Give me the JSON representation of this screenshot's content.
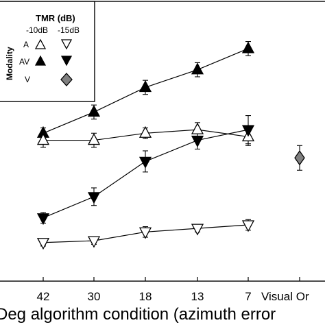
{
  "chart_data": {
    "type": "line",
    "xlabel": "Deg algorithm condition (azimuth error",
    "categories": [
      "42",
      "30",
      "18",
      "13",
      "7",
      "Visual Or"
    ],
    "legend": {
      "title": "TMR (dB)",
      "col_headers": [
        "-10dB",
        "-15dB"
      ],
      "row_title": "Modality",
      "rows": [
        "A",
        "AV",
        "V"
      ],
      "placement": "top-left"
    },
    "series": [
      {
        "name": "AV -10dB",
        "marker": "triangle-up",
        "fill": "#000000",
        "x": [
          "42",
          "30",
          "18",
          "13",
          "7"
        ],
        "y": [
          0.6,
          0.66,
          0.73,
          0.78,
          0.84
        ],
        "err": [
          0.015,
          0.02,
          0.02,
          0.02,
          0.02
        ]
      },
      {
        "name": "A -10dB",
        "marker": "triangle-up",
        "fill": "#ffffff",
        "x": [
          "42",
          "30",
          "18",
          "13",
          "7"
        ],
        "y": [
          0.58,
          0.58,
          0.6,
          0.61,
          0.59
        ],
        "err": [
          0.02,
          0.02,
          0.015,
          0.02,
          0.025
        ]
      },
      {
        "name": "AV -15dB",
        "marker": "triangle-down",
        "fill": "#000000",
        "x": [
          "42",
          "30",
          "18",
          "13",
          "7"
        ],
        "y": [
          0.36,
          0.42,
          0.52,
          0.58,
          0.61
        ],
        "err": [
          0.015,
          0.025,
          0.03,
          0.025,
          0.04
        ]
      },
      {
        "name": "A -15dB",
        "marker": "triangle-down",
        "fill": "#ffffff",
        "x": [
          "42",
          "30",
          "18",
          "13",
          "7"
        ],
        "y": [
          0.29,
          0.295,
          0.32,
          0.33,
          0.34
        ],
        "err": [
          0.01,
          0.01,
          0.015,
          0.01,
          0.015
        ]
      },
      {
        "name": "V",
        "marker": "diamond",
        "fill": "#808080",
        "x": [
          "Visual Or"
        ],
        "y": [
          0.53
        ],
        "err": [
          0.035
        ]
      }
    ],
    "ylim": [
      0.2,
      0.9
    ],
    "grid": false
  }
}
